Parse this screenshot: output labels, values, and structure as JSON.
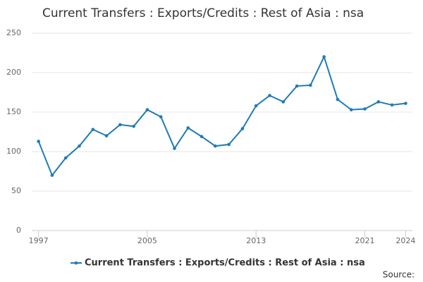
{
  "chart_data": {
    "type": "line",
    "title": "Current Transfers : Exports/Credits : Rest of Asia : nsa",
    "source": "Source:",
    "x": [
      1997,
      1998,
      1999,
      2000,
      2001,
      2002,
      2003,
      2004,
      2005,
      2006,
      2007,
      2008,
      2009,
      2010,
      2011,
      2012,
      2013,
      2014,
      2015,
      2016,
      2017,
      2018,
      2019,
      2020,
      2021,
      2022,
      2023,
      2024
    ],
    "series": [
      {
        "name": "Current Transfers : Exports/Credits : Rest of Asia : nsa",
        "color": "#1f7bb6",
        "values": [
          113,
          70,
          92,
          107,
          128,
          120,
          134,
          132,
          153,
          144,
          104,
          130,
          119,
          107,
          109,
          129,
          158,
          171,
          163,
          183,
          184,
          220,
          166,
          153,
          154,
          163,
          159,
          161
        ]
      }
    ],
    "xlim": [
      1996.5,
      2024.5
    ],
    "xticks": [
      1997,
      2005,
      2013,
      2021,
      2024
    ],
    "ylim": [
      0,
      250
    ],
    "yticks": [
      0,
      50,
      100,
      150,
      200,
      250
    ],
    "grid": true,
    "legend": "bottom"
  }
}
